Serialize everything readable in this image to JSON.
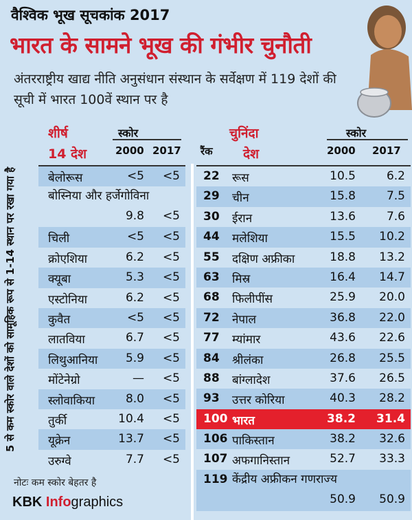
{
  "super_title": "वैश्विक भूख सूचकांक 2017",
  "headline": "भारत के सामने भूख की गंभीर चुनौती",
  "subtitle": "अंतरराष्ट्रीय खाद्य नीति अनुसंधान संस्थान के सर्वेक्षण में 119 देशों की सूची में भारत 100वें स्थान पर है",
  "left_table": {
    "title_line1": "शीर्ष",
    "title_line2": "14 देश",
    "score_label": "स्कोर",
    "year1": "2000",
    "year2": "2017",
    "rows": [
      {
        "name": "बेलोरूस",
        "v2000": "<5",
        "v2017": "<5"
      },
      {
        "name": "बोस्निया और हर्जेगोविना",
        "v2000": "9.8",
        "v2017": "<5"
      },
      {
        "name": "चिली",
        "v2000": "<5",
        "v2017": "<5"
      },
      {
        "name": "क्रोएशिया",
        "v2000": "6.2",
        "v2017": "<5"
      },
      {
        "name": "क्यूबा",
        "v2000": "5.3",
        "v2017": "<5"
      },
      {
        "name": "एस्टोनिया",
        "v2000": "6.2",
        "v2017": "<5"
      },
      {
        "name": "कुवैत",
        "v2000": "<5",
        "v2017": "<5"
      },
      {
        "name": "लातविया",
        "v2000": "6.7",
        "v2017": "<5"
      },
      {
        "name": "लिथुआनिया",
        "v2000": "5.9",
        "v2017": "<5"
      },
      {
        "name": "मोंटेनेग्रो",
        "v2000": "—",
        "v2017": "<5"
      },
      {
        "name": "स्लोवाकिया",
        "v2000": "8.0",
        "v2017": "<5"
      },
      {
        "name": "तुर्की",
        "v2000": "10.4",
        "v2017": "<5"
      },
      {
        "name": "यूक्रेन",
        "v2000": "13.7",
        "v2017": "<5"
      },
      {
        "name": "उरुग्वे",
        "v2000": "7.7",
        "v2017": "<5"
      }
    ]
  },
  "side_note": "5 से कम स्कोर वाले देशों को सामूहिक रूप से 1-14 स्थान पर रखा गया है",
  "note": "नोटः कम स्कोर बेहतर है",
  "brand": {
    "kbk": "KBK ",
    "info": "Info",
    "graphics": "graphics"
  },
  "right_table": {
    "title_line1": "चुनिंदा",
    "title_line2": "देश",
    "rank_label": "रैंक",
    "score_label": "स्कोर",
    "year1": "2000",
    "year2": "2017",
    "rows": [
      {
        "rank": "22",
        "name": "रूस",
        "v2000": "10.5",
        "v2017": "6.2"
      },
      {
        "rank": "29",
        "name": "चीन",
        "v2000": "15.8",
        "v2017": "7.5"
      },
      {
        "rank": "30",
        "name": "ईरान",
        "v2000": "13.6",
        "v2017": "7.6"
      },
      {
        "rank": "44",
        "name": "मलेशिया",
        "v2000": "15.5",
        "v2017": "10.2"
      },
      {
        "rank": "55",
        "name": "दक्षिण अफ्रीका",
        "v2000": "18.8",
        "v2017": "13.2"
      },
      {
        "rank": "63",
        "name": "मिस्र",
        "v2000": "16.4",
        "v2017": "14.7"
      },
      {
        "rank": "68",
        "name": "फिलीपींस",
        "v2000": "25.9",
        "v2017": "20.0"
      },
      {
        "rank": "72",
        "name": "नेपाल",
        "v2000": "36.8",
        "v2017": "22.0"
      },
      {
        "rank": "77",
        "name": "म्यांमार",
        "v2000": "43.6",
        "v2017": "22.6"
      },
      {
        "rank": "84",
        "name": "श्रीलंका",
        "v2000": "26.8",
        "v2017": "25.5"
      },
      {
        "rank": "88",
        "name": "बांग्लादेश",
        "v2000": "37.6",
        "v2017": "26.5"
      },
      {
        "rank": "93",
        "name": "उत्तर कोरिया",
        "v2000": "40.3",
        "v2017": "28.2"
      },
      {
        "rank": "100",
        "name": "भारत",
        "v2000": "38.2",
        "v2017": "31.4"
      },
      {
        "rank": "106",
        "name": "पाकिस्तान",
        "v2000": "38.2",
        "v2017": "32.6"
      },
      {
        "rank": "107",
        "name": "अफगानिस्तान",
        "v2000": "52.7",
        "v2017": "33.3"
      },
      {
        "rank": "119",
        "name": "केंद्रीय अफ्रीकन गणराज्य",
        "v2000": "50.9",
        "v2017": "50.9"
      }
    ]
  }
}
